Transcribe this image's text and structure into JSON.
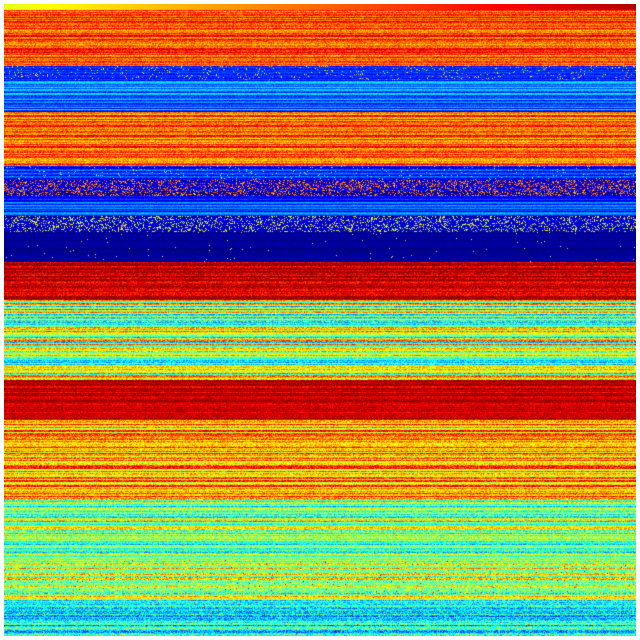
{
  "colormap": {
    "name": "jet",
    "stops": [
      "#00007f",
      "#0000ff",
      "#007fff",
      "#00ffff",
      "#7fff7f",
      "#ffff00",
      "#ff7f00",
      "#ff0000",
      "#7f0000"
    ]
  },
  "border_color": "#ffffff"
}
